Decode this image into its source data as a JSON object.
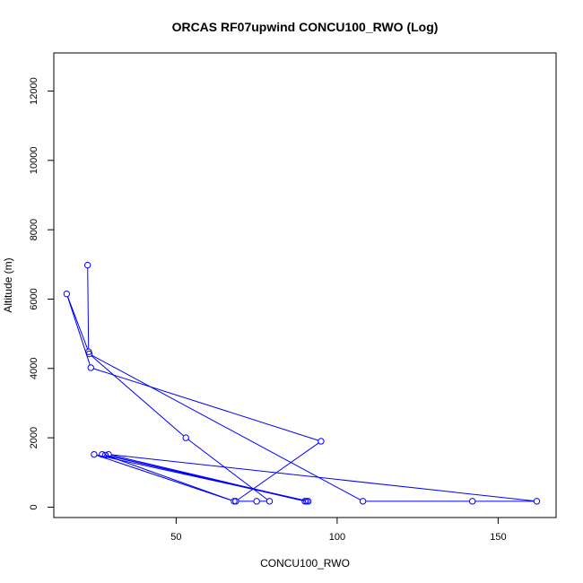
{
  "chart_data": {
    "type": "line",
    "title": "ORCAS RF07upwind CONCU100_RWO (Log)",
    "xlabel": "CONCU100_RWO",
    "ylabel": "Altitude (m)",
    "xlim": [
      12,
      168
    ],
    "ylim": [
      -300,
      13100
    ],
    "x_ticks": [
      50,
      100,
      150
    ],
    "y_ticks": [
      0,
      2000,
      4000,
      6000,
      8000,
      10000,
      12000
    ],
    "grid": false,
    "series": [
      {
        "color": "#0000ff",
        "marker": "open-circle",
        "points": [
          {
            "x": 22.5,
            "y": 6980
          },
          {
            "x": 22.8,
            "y": 4480
          },
          {
            "x": 16.0,
            "y": 6150
          },
          {
            "x": 23.5,
            "y": 4020
          },
          {
            "x": 95.0,
            "y": 1900
          },
          {
            "x": 68.5,
            "y": 170
          },
          {
            "x": 75.0,
            "y": 170
          },
          {
            "x": 79.0,
            "y": 170
          },
          {
            "x": 53.0,
            "y": 2000
          },
          {
            "x": 23.0,
            "y": 4420
          },
          {
            "x": 108.0,
            "y": 170
          },
          {
            "x": 142.0,
            "y": 170
          },
          {
            "x": 162.0,
            "y": 170
          },
          {
            "x": 29.0,
            "y": 1520
          },
          {
            "x": 90.5,
            "y": 170
          },
          {
            "x": 27.0,
            "y": 1520
          },
          {
            "x": 91.0,
            "y": 170
          },
          {
            "x": 24.5,
            "y": 1520
          },
          {
            "x": 68.0,
            "y": 170
          },
          {
            "x": 28.0,
            "y": 1500
          },
          {
            "x": 90.0,
            "y": 170
          }
        ]
      }
    ]
  }
}
